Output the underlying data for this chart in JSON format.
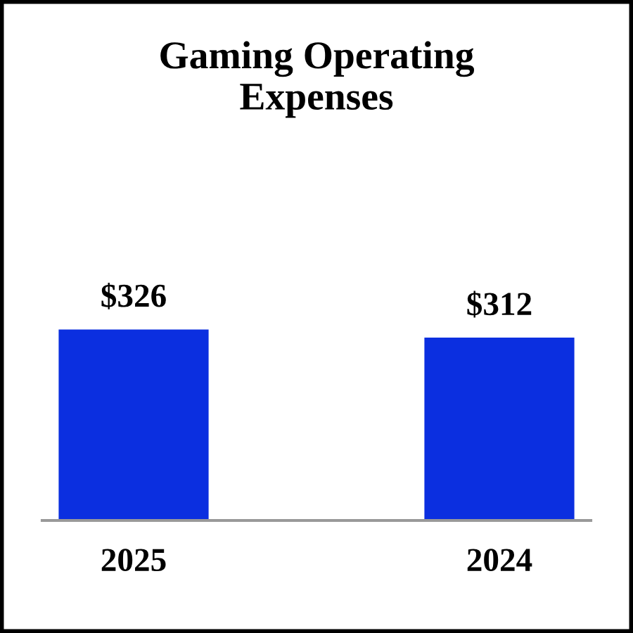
{
  "chart_data": {
    "type": "bar",
    "title": "Gaming Operating\nExpenses",
    "categories": [
      "2025",
      "2024"
    ],
    "values": [
      326,
      312
    ],
    "value_labels": [
      "$326",
      "$312"
    ],
    "color": "#0b2fe0",
    "grid": false
  }
}
